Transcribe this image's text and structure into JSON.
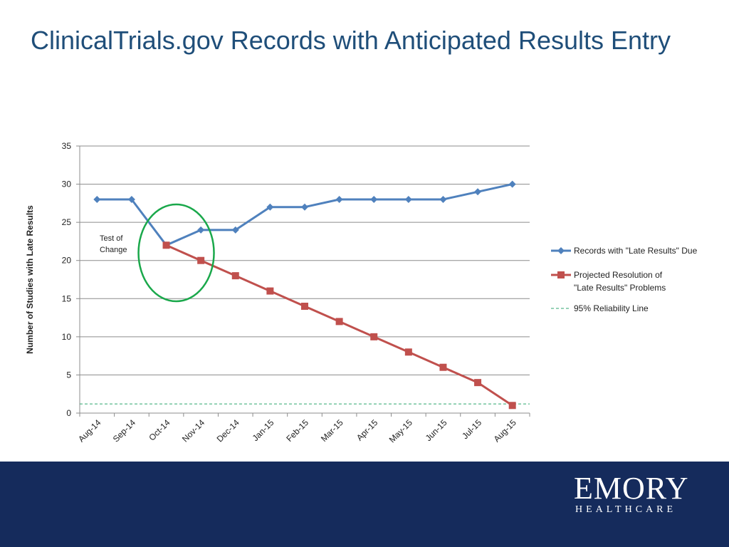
{
  "slide": {
    "title": "ClinicalTrials.gov Records with Anticipated Results Entry"
  },
  "logo": {
    "name": "EMORY",
    "subtitle": "HEALTHCARE"
  },
  "colors": {
    "title": "#1f4e79",
    "series_blue": "#4f81bd",
    "series_red": "#c0504d",
    "reliability": "#2ca66f",
    "circle": "#1aa84b",
    "footer": "#152b5c"
  },
  "chart_data": {
    "type": "line",
    "title": "",
    "xlabel": "",
    "ylabel": "Number of Studies with Late Results",
    "ylim": [
      0,
      35
    ],
    "yticks": [
      0,
      5,
      10,
      15,
      20,
      25,
      30,
      35
    ],
    "grid": true,
    "legend_position": "right",
    "categories": [
      "Aug-14",
      "Sep-14",
      "Oct-14",
      "Nov-14",
      "Dec-14",
      "Jan-15",
      "Feb-15",
      "Mar-15",
      "Apr-15",
      "May-15",
      "Jun-15",
      "Jul-15",
      "Aug-15"
    ],
    "series": [
      {
        "name": "Records with \"Late Results\" Due",
        "marker": "diamond",
        "values": [
          28,
          28,
          22,
          24,
          24,
          27,
          27,
          28,
          28,
          28,
          28,
          29,
          30
        ]
      },
      {
        "name": "Projected Resolution of \"Late Results\" Problems",
        "marker": "square",
        "values": [
          null,
          null,
          22,
          20,
          18,
          16,
          14,
          12,
          10,
          8,
          6,
          4,
          1
        ]
      },
      {
        "name": "95% Reliability Line",
        "style": "dashed",
        "values": [
          1.2,
          1.2,
          1.2,
          1.2,
          1.2,
          1.2,
          1.2,
          1.2,
          1.2,
          1.2,
          1.2,
          1.2,
          1.2
        ]
      }
    ],
    "annotations": [
      {
        "text_lines": [
          "Test of",
          "Change"
        ],
        "category": "Oct-14",
        "value": 21
      }
    ]
  }
}
